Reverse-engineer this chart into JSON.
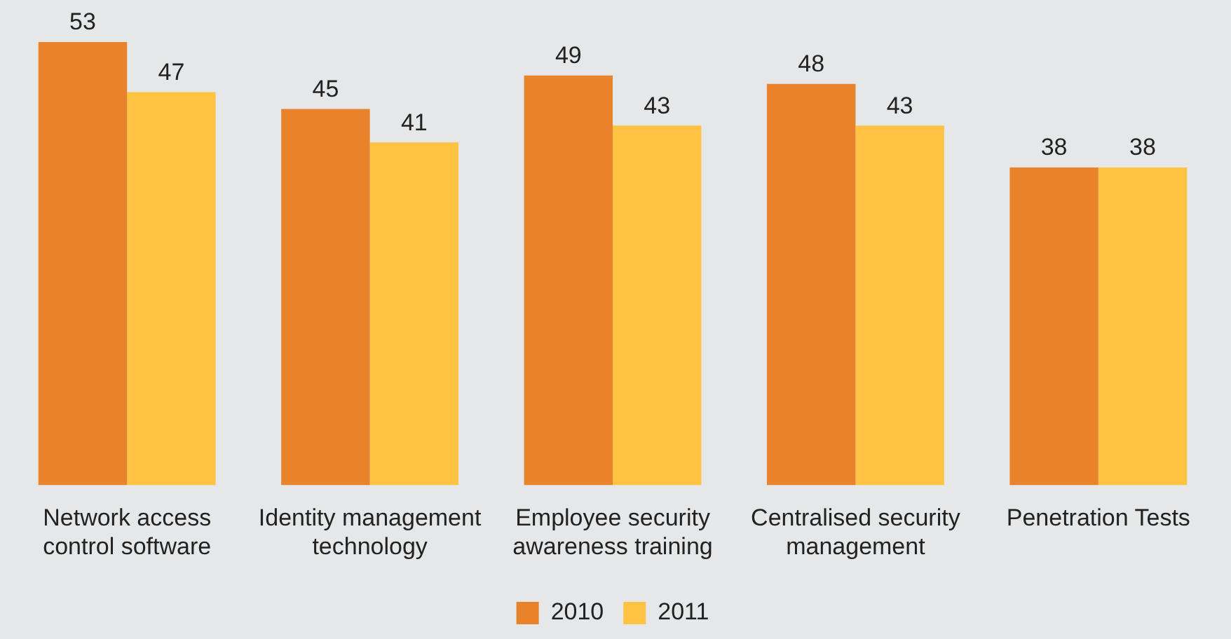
{
  "chart_data": {
    "type": "bar",
    "categories": [
      "Network access control software",
      "Identity management technology",
      "Employee security awareness training",
      "Centralised security management",
      "Penetration Tests"
    ],
    "series": [
      {
        "name": "2010",
        "color": "#e8832b",
        "values": [
          53,
          45,
          49,
          48,
          38
        ]
      },
      {
        "name": "2011",
        "color": "#fec342",
        "values": [
          47,
          41,
          43,
          43,
          38
        ]
      }
    ],
    "ylim": [
      0,
      53
    ],
    "data_labels": true,
    "legend": "bottom",
    "grid": false
  }
}
